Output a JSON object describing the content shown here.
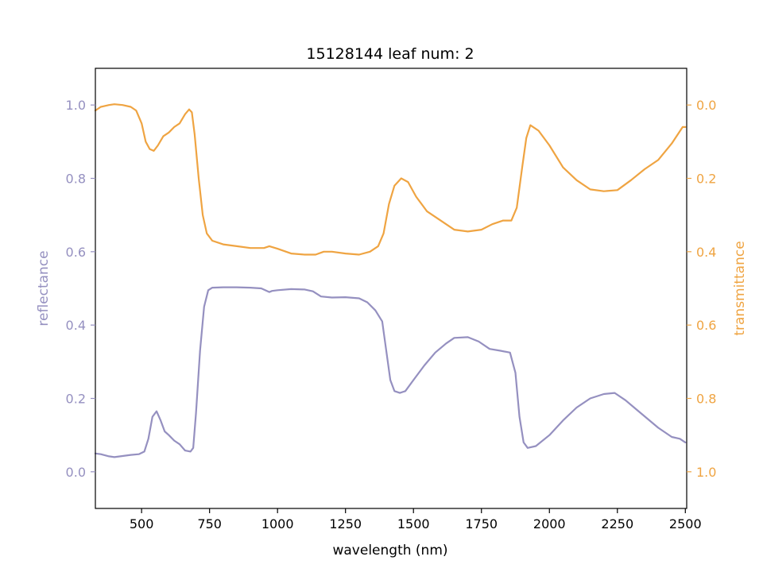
{
  "chart_data": {
    "type": "line",
    "title": "15128144 leaf num: 2",
    "xlabel": "wavelength (nm)",
    "ylabel_left": "reflectance",
    "ylabel_right": "transmittance",
    "xlim": [
      330,
      2505
    ],
    "ylim_left": [
      -0.1,
      1.1
    ],
    "ylim_right": [
      1.1,
      -0.1
    ],
    "right_axis_inverted": true,
    "grid": false,
    "x_ticks": [
      500,
      750,
      1000,
      1250,
      1500,
      1750,
      2000,
      2250,
      2500
    ],
    "y_ticks_left": [
      0.0,
      0.2,
      0.4,
      0.6,
      0.8,
      1.0
    ],
    "y_ticks_right": [
      0.0,
      0.2,
      0.4,
      0.6,
      0.8,
      1.0
    ],
    "x_tick_labels": [
      "500",
      "750",
      "1000",
      "1250",
      "1500",
      "1750",
      "2000",
      "2250",
      "2500"
    ],
    "y_tick_labels_left": [
      "0.0",
      "0.2",
      "0.4",
      "0.6",
      "0.8",
      "1.0"
    ],
    "y_tick_labels_right": [
      "0.0",
      "0.2",
      "0.4",
      "0.6",
      "0.8",
      "1.0"
    ],
    "colors": {
      "reflectance": "#9590c0",
      "transmittance": "#efa442"
    },
    "series": [
      {
        "axis": "left",
        "color": "#9590c0",
        "points": [
          [
            330,
            0.05
          ],
          [
            350,
            0.048
          ],
          [
            380,
            0.042
          ],
          [
            400,
            0.04
          ],
          [
            430,
            0.043
          ],
          [
            460,
            0.046
          ],
          [
            490,
            0.048
          ],
          [
            510,
            0.055
          ],
          [
            525,
            0.09
          ],
          [
            540,
            0.15
          ],
          [
            555,
            0.165
          ],
          [
            570,
            0.14
          ],
          [
            585,
            0.11
          ],
          [
            600,
            0.1
          ],
          [
            620,
            0.085
          ],
          [
            640,
            0.075
          ],
          [
            660,
            0.058
          ],
          [
            680,
            0.055
          ],
          [
            690,
            0.065
          ],
          [
            700,
            0.16
          ],
          [
            715,
            0.33
          ],
          [
            730,
            0.45
          ],
          [
            745,
            0.495
          ],
          [
            760,
            0.502
          ],
          [
            800,
            0.503
          ],
          [
            850,
            0.503
          ],
          [
            900,
            0.502
          ],
          [
            940,
            0.5
          ],
          [
            970,
            0.49
          ],
          [
            980,
            0.493
          ],
          [
            1000,
            0.495
          ],
          [
            1050,
            0.498
          ],
          [
            1100,
            0.497
          ],
          [
            1130,
            0.492
          ],
          [
            1160,
            0.478
          ],
          [
            1200,
            0.475
          ],
          [
            1250,
            0.476
          ],
          [
            1300,
            0.473
          ],
          [
            1330,
            0.462
          ],
          [
            1360,
            0.44
          ],
          [
            1385,
            0.41
          ],
          [
            1400,
            0.33
          ],
          [
            1415,
            0.25
          ],
          [
            1430,
            0.22
          ],
          [
            1450,
            0.215
          ],
          [
            1470,
            0.22
          ],
          [
            1500,
            0.25
          ],
          [
            1540,
            0.29
          ],
          [
            1580,
            0.325
          ],
          [
            1620,
            0.35
          ],
          [
            1650,
            0.365
          ],
          [
            1700,
            0.367
          ],
          [
            1740,
            0.355
          ],
          [
            1780,
            0.335
          ],
          [
            1820,
            0.33
          ],
          [
            1855,
            0.325
          ],
          [
            1875,
            0.27
          ],
          [
            1890,
            0.15
          ],
          [
            1905,
            0.08
          ],
          [
            1920,
            0.065
          ],
          [
            1950,
            0.07
          ],
          [
            2000,
            0.1
          ],
          [
            2050,
            0.14
          ],
          [
            2100,
            0.175
          ],
          [
            2150,
            0.2
          ],
          [
            2200,
            0.212
          ],
          [
            2240,
            0.215
          ],
          [
            2280,
            0.195
          ],
          [
            2320,
            0.17
          ],
          [
            2360,
            0.145
          ],
          [
            2400,
            0.12
          ],
          [
            2450,
            0.095
          ],
          [
            2480,
            0.09
          ],
          [
            2500,
            0.08
          ]
        ]
      },
      {
        "axis": "right",
        "color": "#efa442",
        "points": [
          [
            330,
            0.015
          ],
          [
            350,
            0.005
          ],
          [
            380,
            0.0
          ],
          [
            400,
            -0.002
          ],
          [
            430,
            0.0
          ],
          [
            460,
            0.005
          ],
          [
            480,
            0.015
          ],
          [
            500,
            0.05
          ],
          [
            515,
            0.1
          ],
          [
            530,
            0.12
          ],
          [
            545,
            0.125
          ],
          [
            560,
            0.11
          ],
          [
            580,
            0.085
          ],
          [
            600,
            0.075
          ],
          [
            620,
            0.06
          ],
          [
            640,
            0.05
          ],
          [
            660,
            0.025
          ],
          [
            675,
            0.012
          ],
          [
            685,
            0.02
          ],
          [
            695,
            0.08
          ],
          [
            710,
            0.2
          ],
          [
            725,
            0.3
          ],
          [
            740,
            0.35
          ],
          [
            760,
            0.37
          ],
          [
            800,
            0.38
          ],
          [
            850,
            0.385
          ],
          [
            900,
            0.39
          ],
          [
            950,
            0.39
          ],
          [
            970,
            0.385
          ],
          [
            1000,
            0.392
          ],
          [
            1050,
            0.405
          ],
          [
            1100,
            0.408
          ],
          [
            1140,
            0.408
          ],
          [
            1170,
            0.4
          ],
          [
            1200,
            0.4
          ],
          [
            1250,
            0.405
          ],
          [
            1300,
            0.408
          ],
          [
            1340,
            0.4
          ],
          [
            1370,
            0.385
          ],
          [
            1390,
            0.35
          ],
          [
            1410,
            0.27
          ],
          [
            1430,
            0.22
          ],
          [
            1455,
            0.2
          ],
          [
            1480,
            0.21
          ],
          [
            1510,
            0.25
          ],
          [
            1550,
            0.29
          ],
          [
            1600,
            0.315
          ],
          [
            1650,
            0.34
          ],
          [
            1700,
            0.345
          ],
          [
            1750,
            0.34
          ],
          [
            1790,
            0.325
          ],
          [
            1830,
            0.315
          ],
          [
            1860,
            0.315
          ],
          [
            1880,
            0.28
          ],
          [
            1900,
            0.17
          ],
          [
            1915,
            0.09
          ],
          [
            1930,
            0.055
          ],
          [
            1960,
            0.07
          ],
          [
            2000,
            0.11
          ],
          [
            2050,
            0.17
          ],
          [
            2100,
            0.205
          ],
          [
            2150,
            0.23
          ],
          [
            2200,
            0.235
          ],
          [
            2250,
            0.232
          ],
          [
            2300,
            0.205
          ],
          [
            2350,
            0.175
          ],
          [
            2400,
            0.15
          ],
          [
            2450,
            0.105
          ],
          [
            2490,
            0.06
          ],
          [
            2500,
            0.06
          ]
        ]
      }
    ]
  }
}
